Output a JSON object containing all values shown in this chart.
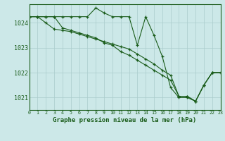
{
  "title": "Graphe pression niveau de la mer (hPa)",
  "background_color": "#cce8e8",
  "grid_color": "#aacccc",
  "line_color": "#1a5c1a",
  "text_color": "#1a5c1a",
  "xlim": [
    0,
    23
  ],
  "ylim": [
    1020.5,
    1024.75
  ],
  "yticks": [
    1021,
    1022,
    1023,
    1024
  ],
  "xticks": [
    0,
    1,
    2,
    3,
    4,
    5,
    6,
    7,
    8,
    9,
    10,
    11,
    12,
    13,
    14,
    15,
    16,
    17,
    18,
    19,
    20,
    21,
    22,
    23
  ],
  "series": [
    [
      1024.25,
      1024.25,
      1024.25,
      1024.25,
      1024.25,
      1024.25,
      1024.25,
      1024.25,
      1024.6,
      1024.4,
      1024.25,
      1024.25,
      1024.25,
      1023.1,
      1024.25,
      1023.5,
      1022.65,
      1021.4,
      1021.0,
      1021.0,
      1020.85,
      1021.5,
      1022.0,
      1022.0
    ],
    [
      1024.25,
      1024.25,
      1024.0,
      1023.75,
      1023.7,
      1023.65,
      1023.55,
      1023.45,
      1023.35,
      1023.25,
      1023.15,
      1023.05,
      1022.95,
      1022.75,
      1022.55,
      1022.35,
      1022.1,
      1021.9,
      1021.05,
      1021.05,
      1020.85,
      1021.5,
      1022.0,
      1022.0
    ],
    [
      1024.25,
      1024.25,
      1024.25,
      1024.25,
      1023.8,
      1023.7,
      1023.6,
      1023.5,
      1023.4,
      1023.2,
      1023.1,
      1022.85,
      1022.7,
      1022.5,
      1022.3,
      1022.1,
      1021.9,
      1021.7,
      1021.05,
      1021.05,
      1020.85,
      1021.5,
      1022.0,
      1022.0
    ]
  ]
}
